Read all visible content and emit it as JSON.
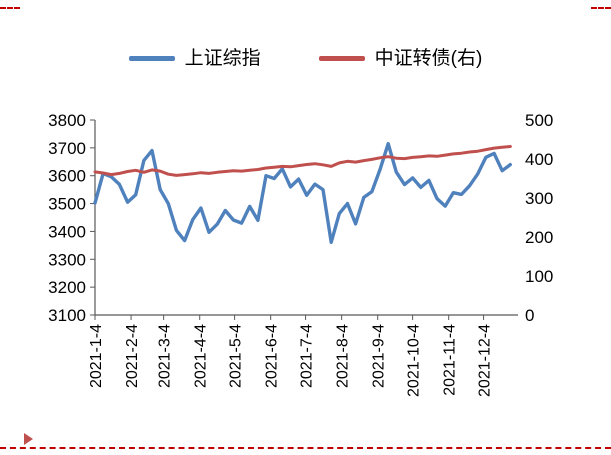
{
  "page": {
    "background": "#ffffff",
    "page_break_color": "#c00000"
  },
  "chart_data": {
    "type": "line",
    "title": "",
    "grid": false,
    "legend_position": "top",
    "x_unit": "day_of_year_2021",
    "x_range": [
      4,
      365
    ],
    "x_ticks": {
      "positions": [
        4,
        35,
        63,
        94,
        124,
        155,
        185,
        216,
        247,
        277,
        308,
        338
      ],
      "labels": [
        "2021-1-4",
        "2021-2-4",
        "2021-3-4",
        "2021-4-4",
        "2021-5-4",
        "2021-6-4",
        "2021-7-4",
        "2021-8-4",
        "2021-9-4",
        "2021-10-4",
        "2021-11-4",
        "2021-12-4"
      ]
    },
    "left_axis": {
      "range": [
        3100,
        3800
      ],
      "ticks": [
        3800,
        3700,
        3600,
        3500,
        3400,
        3300,
        3200,
        3100
      ]
    },
    "right_axis": {
      "range": [
        0,
        500
      ],
      "ticks": [
        500,
        400,
        300,
        200,
        100,
        0
      ]
    },
    "series": [
      {
        "name": "上证综指",
        "axis": "left",
        "color": "#4F81BD",
        "x": [
          4,
          11,
          18,
          25,
          32,
          39,
          46,
          53,
          60,
          67,
          74,
          81,
          88,
          95,
          102,
          109,
          116,
          123,
          130,
          137,
          144,
          151,
          158,
          165,
          172,
          179,
          186,
          193,
          200,
          207,
          214,
          221,
          228,
          235,
          242,
          249,
          256,
          263,
          270,
          277,
          284,
          291,
          298,
          305,
          312,
          319,
          326,
          333,
          340,
          347,
          354,
          361
        ],
        "values": [
          3502,
          3608,
          3596,
          3569,
          3505,
          3532,
          3655,
          3690,
          3550,
          3500,
          3404,
          3367,
          3442,
          3484,
          3397,
          3426,
          3475,
          3441,
          3430,
          3490,
          3440,
          3600,
          3590,
          3625,
          3560,
          3588,
          3530,
          3570,
          3550,
          3361,
          3464,
          3500,
          3427,
          3522,
          3543,
          3622,
          3715,
          3613,
          3568,
          3592,
          3558,
          3583,
          3518,
          3491,
          3539,
          3533,
          3564,
          3607,
          3666,
          3680,
          3618,
          3640
        ]
      },
      {
        "name": "中证转债(右)",
        "axis": "right",
        "color": "#C0504D",
        "x": [
          4,
          11,
          18,
          25,
          32,
          39,
          46,
          53,
          60,
          67,
          74,
          81,
          88,
          95,
          102,
          109,
          116,
          123,
          130,
          137,
          144,
          151,
          158,
          165,
          172,
          179,
          186,
          193,
          200,
          207,
          214,
          221,
          228,
          235,
          242,
          249,
          256,
          263,
          270,
          277,
          284,
          291,
          298,
          305,
          312,
          319,
          326,
          333,
          340,
          347,
          354,
          361
        ],
        "values": [
          367,
          364,
          360,
          363,
          368,
          371,
          366,
          372,
          369,
          361,
          358,
          360,
          362,
          365,
          363,
          366,
          368,
          370,
          369,
          371,
          373,
          377,
          379,
          381,
          380,
          383,
          386,
          388,
          385,
          381,
          390,
          394,
          392,
          396,
          399,
          403,
          406,
          402,
          401,
          404,
          406,
          408,
          407,
          410,
          413,
          415,
          418,
          420,
          424,
          428,
          430,
          432
        ]
      }
    ]
  }
}
